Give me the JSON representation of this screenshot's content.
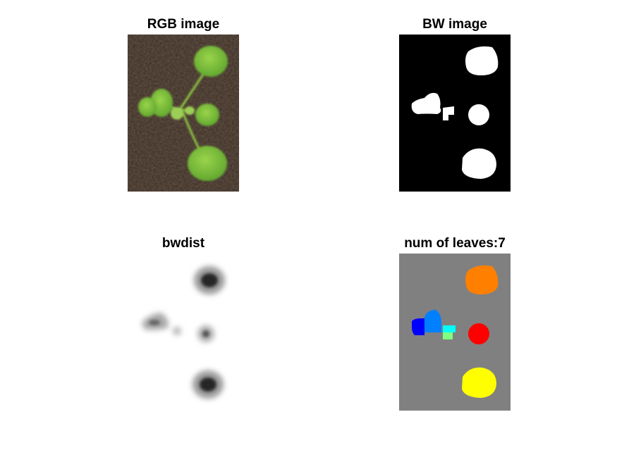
{
  "figure": {
    "panels": [
      {
        "id": "rgb",
        "title": "RGB image"
      },
      {
        "id": "bw",
        "title": "BW image"
      },
      {
        "id": "dist",
        "title": "bwdist"
      },
      {
        "id": "label",
        "title": "num of leaves:7"
      }
    ]
  },
  "colors": {
    "soil": "#3a2c22",
    "leaf": "#7fc13a",
    "leaf_light": "#a6d85a",
    "bw_background": "#000000",
    "bw_foreground": "#ffffff",
    "label_background": "#808080",
    "label_orange": "#ff7f00",
    "label_red": "#ff0000",
    "label_yellow": "#ffff00",
    "label_blue": "#0000ff",
    "label_lightblue": "#0080ff",
    "label_cyan": "#00ffff",
    "label_lightgreen": "#80ff80"
  },
  "leaf_count": 7
}
